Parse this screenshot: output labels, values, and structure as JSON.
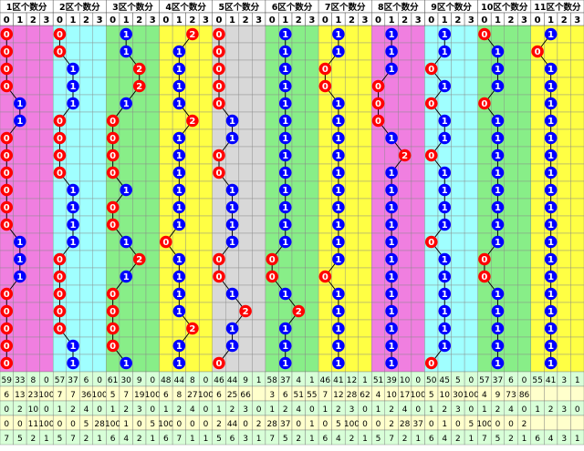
{
  "chart_data": {
    "type": "table",
    "title": "",
    "region_labels": [
      "1区个数分",
      "2区个数分",
      "3区个数分",
      "4区个数分",
      "5区个数分",
      "6区个数分",
      "7区个数分",
      "8区个数分",
      "9区个数分",
      "10区个数分",
      "11区个数分"
    ],
    "sub_headers": [
      "0",
      "1",
      "2",
      "3"
    ],
    "rows": 20,
    "colors": {
      "pink": "#f07fe0",
      "cyan": "#a0ffff",
      "green": "#88ee88",
      "yellow": "#ffff44",
      "gray": "#d8d8d8",
      "blue_ball": "#0000ff",
      "red_ball": "#ff0000",
      "header_bg": "#ffffff",
      "sub_header_bg": "#ffffff",
      "stats_bg_1": "#d8ffd8",
      "stats_bg_2": "#ffffcc"
    },
    "region_fills": [
      [
        "pink",
        "pink",
        "pink",
        "pink"
      ],
      [
        "cyan",
        "cyan",
        "cyan",
        "cyan"
      ],
      [
        "green",
        "green",
        "green",
        "green"
      ],
      [
        "yellow",
        "yellow",
        "yellow",
        "yellow"
      ],
      [
        "gray",
        "gray",
        "gray",
        "gray"
      ],
      [
        "green",
        "green",
        "green",
        "green"
      ],
      [
        "yellow",
        "yellow",
        "yellow",
        "yellow"
      ],
      [
        "pink",
        "pink",
        "pink",
        "pink"
      ],
      [
        "cyan",
        "cyan",
        "cyan",
        "cyan"
      ],
      [
        "green",
        "green",
        "green",
        "green"
      ],
      [
        "yellow",
        "yellow",
        "yellow",
        "yellow"
      ]
    ],
    "balls": [
      [
        0,
        0,
        0,
        0,
        1,
        1,
        0,
        0,
        0,
        0,
        0,
        0,
        1,
        1,
        1,
        0,
        0,
        0,
        0,
        0
      ],
      [
        0,
        0,
        1,
        1,
        1,
        0,
        0,
        0,
        0,
        1,
        1,
        1,
        1,
        0,
        0,
        0,
        0,
        0,
        1,
        1
      ],
      [
        1,
        1,
        2,
        2,
        1,
        0,
        0,
        0,
        0,
        1,
        0,
        0,
        1,
        2,
        1,
        0,
        0,
        0,
        0,
        1
      ],
      [
        2,
        1,
        1,
        1,
        1,
        2,
        1,
        1,
        1,
        1,
        1,
        1,
        0,
        1,
        1,
        1,
        1,
        2,
        1,
        1
      ],
      [
        0,
        0,
        0,
        0,
        0,
        1,
        1,
        0,
        0,
        1,
        1,
        1,
        1,
        0,
        0,
        1,
        2,
        1,
        1,
        0
      ],
      [
        1,
        1,
        1,
        1,
        1,
        1,
        1,
        1,
        1,
        1,
        1,
        1,
        1,
        0,
        0,
        1,
        2,
        1,
        1,
        1
      ],
      [
        1,
        1,
        0,
        0,
        1,
        1,
        1,
        1,
        1,
        1,
        1,
        1,
        1,
        1,
        0,
        1,
        1,
        1,
        1,
        1
      ],
      [
        1,
        1,
        1,
        0,
        0,
        0,
        1,
        2,
        1,
        1,
        1,
        1,
        1,
        1,
        1,
        1,
        1,
        1,
        1,
        1
      ],
      [
        1,
        1,
        0,
        1,
        0,
        1,
        1,
        0,
        1,
        1,
        1,
        1,
        0,
        1,
        1,
        1,
        1,
        1,
        1,
        0
      ],
      [
        0,
        1,
        1,
        1,
        0,
        1,
        1,
        1,
        1,
        1,
        1,
        1,
        1,
        0,
        0,
        1,
        1,
        1,
        1,
        1
      ],
      [
        1,
        0,
        1,
        1,
        1,
        1,
        1,
        1,
        1,
        1,
        1,
        1,
        1,
        1,
        1,
        1,
        1,
        1,
        1,
        1
      ]
    ],
    "stats_rows": [
      [
        "59",
        "33",
        "8",
        "0",
        "57",
        "37",
        "6",
        "0",
        "61",
        "30",
        "9",
        "0",
        "48",
        "44",
        "8",
        "0",
        "46",
        "44",
        "9",
        "1",
        "58",
        "37",
        "4",
        "1",
        "46",
        "41",
        "12",
        "1",
        "51",
        "39",
        "10",
        "0",
        "50",
        "45",
        "5",
        "0",
        "57",
        "37",
        "6",
        "0",
        "55",
        "41",
        "3",
        "1"
      ],
      [
        "6",
        "13",
        "23",
        "100",
        "7",
        "7",
        "36",
        "100",
        "5",
        "7",
        "19",
        "100",
        "6",
        "8",
        "27",
        "100",
        "6",
        "25",
        "66",
        "",
        "3",
        "6",
        "51",
        "55",
        "7",
        "12",
        "28",
        "62",
        "4",
        "10",
        "17",
        "100",
        "5",
        "10",
        "30",
        "100",
        "4",
        "9",
        "73",
        "86"
      ],
      [
        "0",
        "2",
        "10",
        "0",
        "1",
        "2",
        "4",
        "0",
        "1",
        "2",
        "3",
        "0",
        "1",
        "2",
        "4",
        "0",
        "1",
        "2",
        "3",
        "0",
        "1",
        "2",
        "4",
        "0",
        "1",
        "2",
        "3",
        "0",
        "1",
        "2",
        "4",
        "0",
        "1",
        "2",
        "3",
        "0",
        "1",
        "2",
        "4",
        "0",
        "1",
        "2",
        "3",
        "0"
      ],
      [
        "0",
        "0",
        "11",
        "100",
        "0",
        "0",
        "5",
        "28",
        "100",
        "1",
        "0",
        "5",
        "100",
        "0",
        "0",
        "0",
        "2",
        "44",
        "0",
        "2",
        "28",
        "37",
        "0",
        "1",
        "0",
        "5",
        "100",
        "0",
        "0",
        "2",
        "28",
        "37",
        "0",
        "1",
        "0",
        "5",
        "100",
        "0",
        "0",
        "2"
      ],
      [
        "7",
        "5",
        "2",
        "1",
        "5",
        "7",
        "2",
        "1",
        "6",
        "4",
        "2",
        "1",
        "6",
        "7",
        "1",
        "1",
        "5",
        "6",
        "3",
        "1",
        "7",
        "5",
        "2",
        "1",
        "6",
        "4",
        "2",
        "1",
        "5",
        "7",
        "2",
        "1",
        "6",
        "4",
        "2",
        "1",
        "7",
        "5",
        "2",
        "1",
        "6",
        "4",
        "3",
        "1"
      ]
    ]
  }
}
